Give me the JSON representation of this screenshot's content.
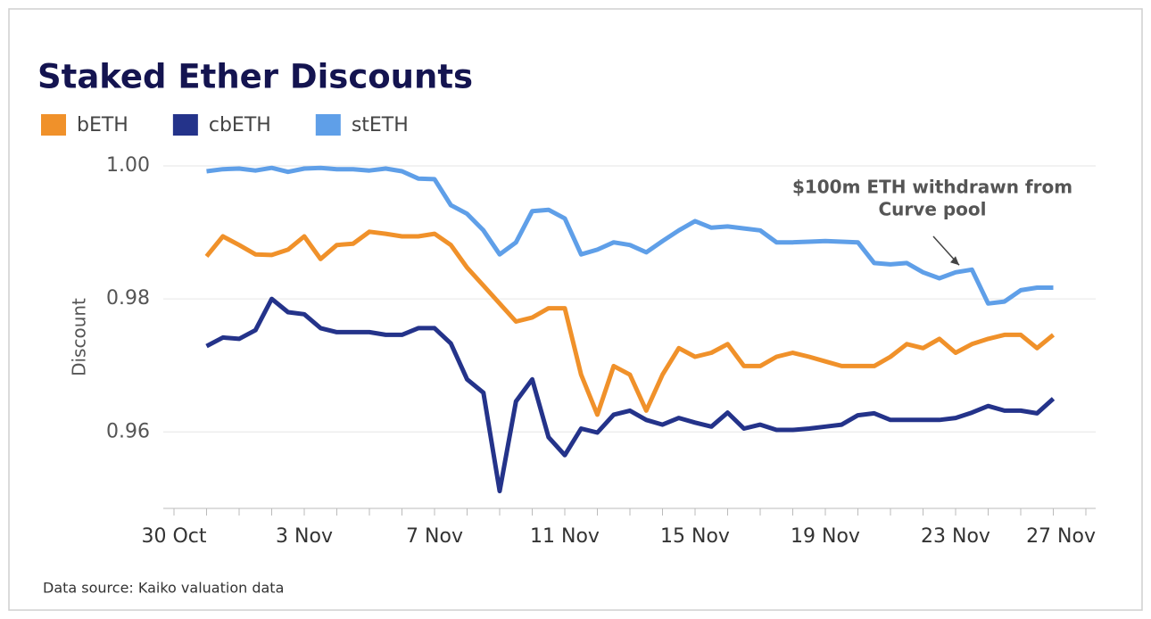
{
  "chart_data": {
    "type": "line",
    "title": "Staked Ether Discounts",
    "y_label": "Discount",
    "source": "Data source: Kaiko valuation data",
    "annotation": {
      "lines": [
        "$100m ETH withdrawn from",
        "Curve pool"
      ]
    },
    "legend": "top-left",
    "grid": true,
    "categories": [
      "30 Oct",
      null,
      null,
      null,
      null,
      null,
      null,
      null,
      "3 Nov",
      null,
      null,
      null,
      null,
      null,
      null,
      null,
      "7 Nov",
      null,
      null,
      null,
      null,
      null,
      null,
      null,
      "11 Nov",
      null,
      null,
      null,
      null,
      null,
      null,
      null,
      "15 Nov",
      null,
      null,
      null,
      null,
      null,
      null,
      null,
      "19 Nov",
      null,
      null,
      null,
      null,
      null,
      null,
      null,
      "23 Nov",
      null,
      null,
      null,
      null,
      null,
      null,
      null,
      "27 Nov"
    ],
    "ylim": [
      0.9485,
      1.0
    ],
    "yticks": [
      {
        "value": 1.0,
        "label": "1.00"
      },
      {
        "value": 0.98,
        "label": "0.98"
      },
      {
        "value": 0.96,
        "label": "0.96"
      }
    ],
    "series": [
      {
        "name": "bETH",
        "color": "#f0912a",
        "values": [
          null,
          null,
          0.9864,
          0.9894,
          0.9881,
          0.9867,
          0.9866,
          0.9874,
          0.9894,
          0.986,
          0.9881,
          0.9883,
          0.9901,
          0.9898,
          0.9894,
          0.9894,
          0.9898,
          0.9881,
          0.9847,
          0.982,
          0.9793,
          0.9766,
          0.9772,
          0.9786,
          0.9786,
          0.9686,
          0.9626,
          0.9699,
          0.9686,
          0.9632,
          0.9686,
          0.9726,
          0.9713,
          0.9719,
          0.9732,
          0.9699,
          0.9699,
          0.9713,
          0.9719,
          0.9713,
          0.9706,
          0.9699,
          0.9699,
          0.9699,
          0.9713,
          0.9732,
          0.9726,
          0.974,
          0.9719,
          0.9732,
          0.974,
          0.9746,
          0.9746,
          0.9726,
          0.9746,
          null,
          null
        ]
      },
      {
        "name": "cbETH",
        "color": "#24338a",
        "values": [
          null,
          null,
          0.9729,
          0.9742,
          0.974,
          0.9753,
          0.98,
          0.978,
          0.9777,
          0.9756,
          0.975,
          0.975,
          0.975,
          0.9746,
          0.9746,
          0.9756,
          0.9756,
          0.9733,
          0.9679,
          0.9659,
          0.9511,
          0.9646,
          0.9679,
          0.9592,
          0.9565,
          0.9605,
          0.9599,
          0.9626,
          0.9632,
          0.9618,
          0.9611,
          0.9621,
          0.9614,
          0.9608,
          0.9629,
          0.9605,
          0.9611,
          0.9603,
          0.9603,
          0.9605,
          0.9608,
          0.9611,
          0.9625,
          0.9628,
          0.9618,
          0.9618,
          0.9618,
          0.9618,
          0.9621,
          0.9629,
          0.9639,
          0.9632,
          0.9632,
          0.9628,
          0.965,
          null,
          null
        ]
      },
      {
        "name": "stETH",
        "color": "#5f9fe8",
        "values": [
          null,
          null,
          0.9992,
          0.9995,
          0.9996,
          0.9993,
          0.9997,
          0.9991,
          0.9996,
          0.9997,
          0.9995,
          0.9995,
          0.9993,
          0.9996,
          0.9992,
          0.9981,
          0.998,
          0.9941,
          0.9928,
          0.9903,
          0.9867,
          0.9885,
          0.9932,
          0.9934,
          0.9921,
          0.9867,
          0.9874,
          0.9885,
          0.9881,
          0.987,
          0.9887,
          0.9903,
          0.9917,
          0.9907,
          0.9909,
          0.9906,
          0.9903,
          0.9885,
          0.9885,
          0.9886,
          0.9887,
          0.9886,
          0.9885,
          0.9854,
          0.9852,
          0.9854,
          0.984,
          0.9831,
          0.984,
          0.9844,
          0.9793,
          0.9796,
          0.9813,
          0.9817,
          0.9817,
          null,
          null
        ]
      }
    ]
  }
}
